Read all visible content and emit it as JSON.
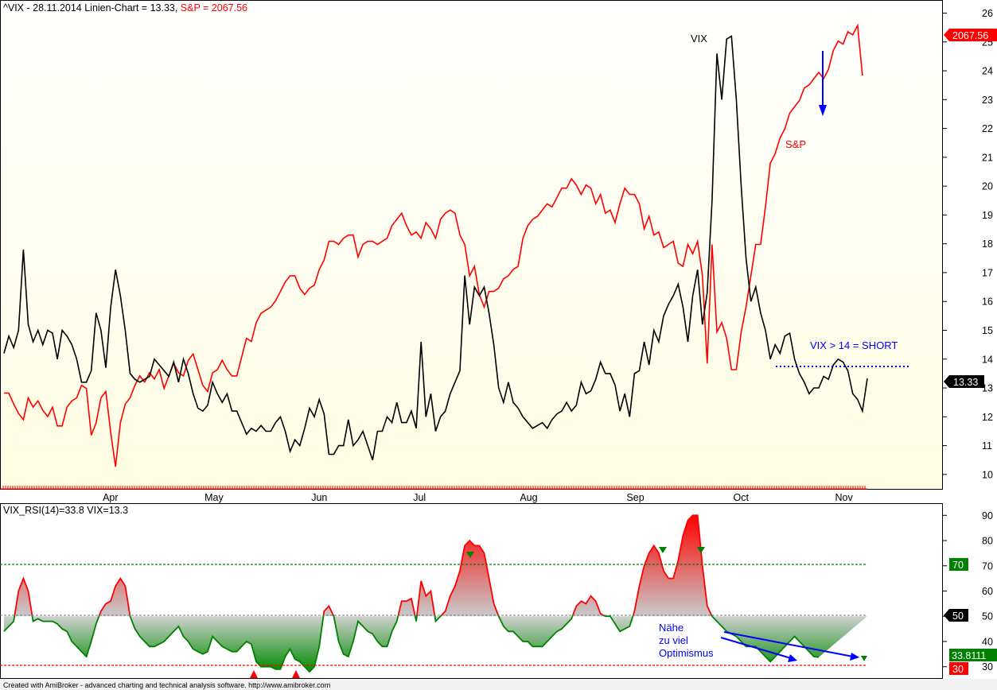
{
  "top_panel": {
    "title_prefix": "^VIX - 28.11.2014 Linien-Chart  = 13.33, ",
    "title_sp": "S&P = 2067.56",
    "vix_label": "VIX",
    "sp_label": "S&P",
    "annotation": "VIX > 14 = SHORT",
    "vix_badge": "13.33",
    "sp_badge": "2067.56",
    "colors": {
      "vix": "#000000",
      "sp": "#ff0000",
      "annotation": "#0000ff"
    }
  },
  "bottom_panel": {
    "title": "VIX_RSI(14)=33.8   VIX=13.3",
    "note_lines": [
      "Nähe",
      "zu viel",
      "Optimismus"
    ],
    "badge_70": "70",
    "badge_50": "50",
    "badge_rsi": "33.8111",
    "badge_30": "30",
    "colors": {
      "overbought": "#ff0000",
      "oversold": "#008000",
      "neutral": "#808080"
    }
  },
  "footer": "Created with AmiBroker - advanced charting and technical analysis software. http://www.amibroker.com",
  "chart_data": [
    {
      "type": "line",
      "title": "^VIX - 28.11.2014 Linien-Chart",
      "x_tick_labels": [
        "Apr",
        "May",
        "Jun",
        "Jul",
        "Aug",
        "Sep",
        "Oct",
        "Nov"
      ],
      "y_tick_labels": [
        "10",
        "11",
        "12",
        "13",
        "14",
        "15",
        "16",
        "17",
        "18",
        "19",
        "20",
        "21",
        "22",
        "23",
        "24",
        "25",
        "26"
      ],
      "ylim": [
        9.5,
        26.4
      ],
      "series": [
        {
          "name": "VIX",
          "color": "#000000",
          "values": [
            14.2,
            14.8,
            14.4,
            15.0,
            17.8,
            15.2,
            14.6,
            15.0,
            14.5,
            15.0,
            14.9,
            14.0,
            15.0,
            14.8,
            14.5,
            14.0,
            13.2,
            13.2,
            13.6,
            15.6,
            15.0,
            13.7,
            15.8,
            17.1,
            16.2,
            15.0,
            13.5,
            13.3,
            13.2,
            13.3,
            13.4,
            14.0,
            13.8,
            13.6,
            13.4,
            13.9,
            13.2,
            14.0,
            13.5,
            12.8,
            12.3,
            12.2,
            12.4,
            13.2,
            12.8,
            12.5,
            12.8,
            12.2,
            12.2,
            11.8,
            11.4,
            11.6,
            11.5,
            11.7,
            11.5,
            11.5,
            11.8,
            12.0,
            11.5,
            10.8,
            11.2,
            11.0,
            11.6,
            12.3,
            12.0,
            12.6,
            12.1,
            10.7,
            10.7,
            11.0,
            11.0,
            11.9,
            11.0,
            11.2,
            11.5,
            11.0,
            10.5,
            11.5,
            11.5,
            12.0,
            11.8,
            12.5,
            11.8,
            11.8,
            12.2,
            11.6,
            14.6,
            12.0,
            12.8,
            11.5,
            12.0,
            12.2,
            12.8,
            13.2,
            13.6,
            16.9,
            15.2,
            16.5,
            16.2,
            16.5,
            15.6,
            14.5,
            13.0,
            12.5,
            13.2,
            12.5,
            12.3,
            12.0,
            11.8,
            11.6,
            11.7,
            11.8,
            11.6,
            11.9,
            12.1,
            12.2,
            12.5,
            12.2,
            12.4,
            13.2,
            12.8,
            12.9,
            13.3,
            13.9,
            13.5,
            13.5,
            13.1,
            12.2,
            12.8,
            12.0,
            13.5,
            13.6,
            14.6,
            13.8,
            15.0,
            14.6,
            15.5,
            15.9,
            16.2,
            16.6,
            15.8,
            14.6,
            16.2,
            17.1,
            15.2,
            16.3,
            19.5,
            24.6,
            23.0,
            25.1,
            25.2,
            23.0,
            20.0,
            17.5,
            16.0,
            16.5,
            15.6,
            15.0,
            14.0,
            14.5,
            14.2,
            14.8,
            14.9,
            14.0,
            13.5,
            13.2,
            12.8,
            13.0,
            13.0,
            13.4,
            13.3,
            13.8,
            14.0,
            13.9,
            13.6,
            12.8,
            12.6,
            12.2,
            13.33
          ]
        },
        {
          "name": "S&P",
          "color": "#ff0000",
          "values": [
            1865,
            1865,
            1858,
            1852,
            1848,
            1862,
            1856,
            1860,
            1854,
            1850,
            1856,
            1844,
            1844,
            1856,
            1860,
            1862,
            1870,
            1868,
            1838,
            1846,
            1862,
            1866,
            1840,
            1818,
            1846,
            1858,
            1862,
            1870,
            1876,
            1872,
            1878,
            1874,
            1880,
            1868,
            1876,
            1884,
            1878,
            1876,
            1886,
            1890,
            1880,
            1870,
            1866,
            1878,
            1880,
            1886,
            1880,
            1876,
            1876,
            1888,
            1900,
            1898,
            1910,
            1916,
            1918,
            1920,
            1924,
            1930,
            1936,
            1940,
            1940,
            1932,
            1928,
            1932,
            1934,
            1944,
            1950,
            1962,
            1962,
            1960,
            1964,
            1966,
            1966,
            1952,
            1960,
            1962,
            1962,
            1960,
            1962,
            1964,
            1972,
            1976,
            1980,
            1972,
            1966,
            1968,
            1964,
            1974,
            1970,
            1964,
            1976,
            1980,
            1982,
            1980,
            1966,
            1960,
            1940,
            1946,
            1928,
            1920,
            1930,
            1930,
            1932,
            1938,
            1940,
            1944,
            1946,
            1964,
            1972,
            1976,
            1978,
            1982,
            1986,
            1984,
            1990,
            1996,
            1996,
            2002,
            1998,
            1992,
            1998,
            1996,
            1986,
            1992,
            1980,
            1982,
            1974,
            1986,
            1996,
            1992,
            1992,
            1986,
            1970,
            1978,
            1966,
            1968,
            1958,
            1960,
            1962,
            1948,
            1946,
            1960,
            1954,
            1962,
            1940,
            1884,
            1960,
            1904,
            1910,
            1900,
            1880,
            1880,
            1904,
            1920,
            1940,
            1960,
            1960,
            1984,
            2012,
            2018,
            2028,
            2034,
            2044,
            2048,
            2052,
            2060,
            2062,
            2066,
            2070,
            2066,
            2072,
            2084,
            2090,
            2088,
            2096,
            2094,
            2100,
            2068
          ]
        }
      ]
    },
    {
      "type": "area",
      "title": "VIX_RSI(14)=33.8   VIX=13.3",
      "y_tick_labels": [
        "30",
        "40",
        "50",
        "60",
        "70",
        "80",
        "90"
      ],
      "ylim": [
        25.5,
        94.5
      ],
      "reference_lines": [
        70,
        50,
        30
      ],
      "series": [
        {
          "name": "VIX_RSI(14)",
          "values": [
            44,
            46,
            48,
            60,
            65,
            60,
            48,
            49,
            48,
            48,
            48,
            47,
            45,
            44,
            40,
            38,
            36,
            34,
            40,
            47,
            52,
            55,
            56,
            62,
            65,
            62,
            50,
            45,
            42,
            40,
            38,
            38,
            39,
            40,
            42,
            44,
            46,
            42,
            40,
            37,
            36,
            35,
            36,
            42,
            40,
            38,
            37,
            36,
            36,
            38,
            40,
            39,
            32,
            30,
            30,
            30,
            29,
            29,
            34,
            37,
            33,
            32,
            30,
            28,
            30,
            38,
            52,
            54,
            50,
            40,
            35,
            34,
            40,
            48,
            46,
            44,
            43,
            40,
            38,
            38,
            44,
            48,
            56,
            56,
            57,
            48,
            64,
            58,
            60,
            48,
            50,
            52,
            58,
            62,
            68,
            78,
            80,
            78,
            78,
            75,
            65,
            55,
            50,
            46,
            44,
            44,
            42,
            40,
            40,
            38,
            38,
            38,
            40,
            42,
            44,
            45,
            47,
            49,
            54,
            56,
            55,
            58,
            56,
            51,
            50,
            50,
            47,
            44,
            45,
            46,
            52,
            62,
            70,
            75,
            78,
            75,
            68,
            65,
            65,
            72,
            82,
            88,
            90,
            90,
            70,
            54,
            50,
            48,
            46,
            44,
            43,
            42,
            40,
            38,
            38,
            38,
            36,
            34,
            32,
            34,
            36,
            38,
            40,
            42,
            40,
            38,
            36,
            34,
            33.8
          ]
        }
      ]
    }
  ]
}
